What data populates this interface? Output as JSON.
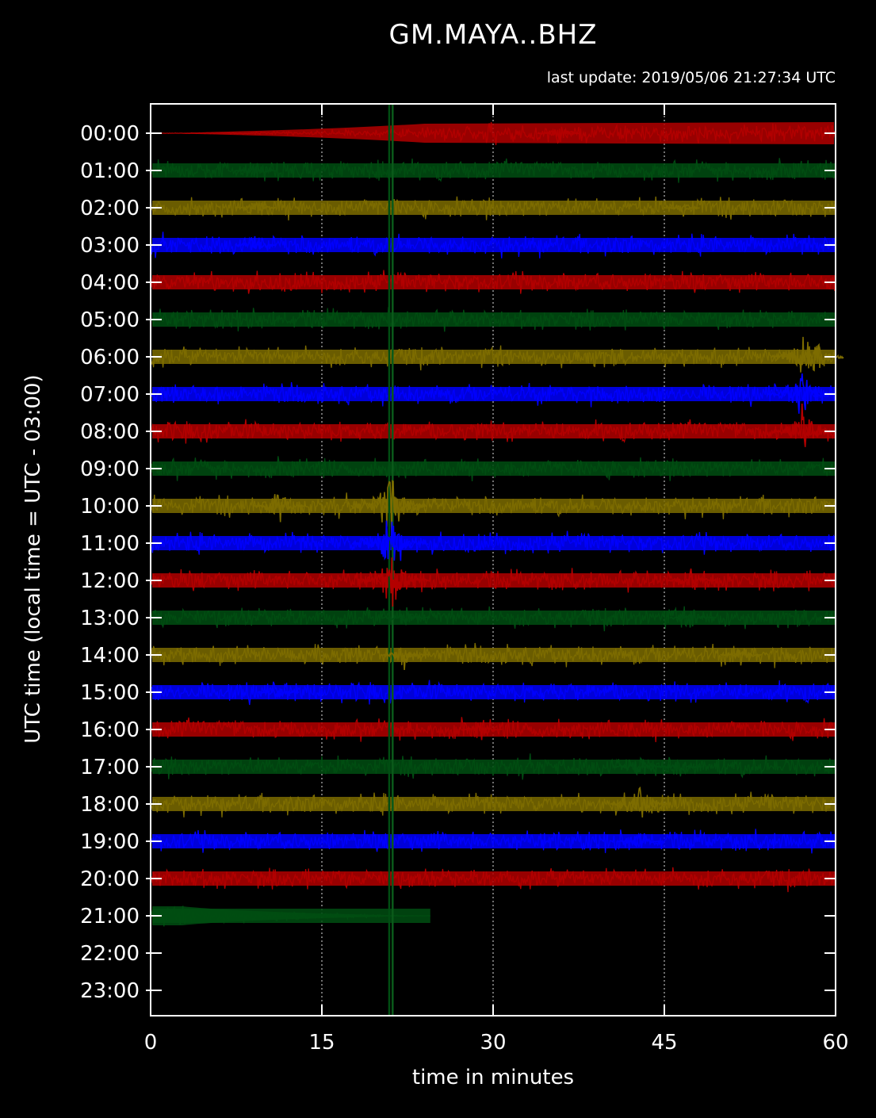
{
  "chart_data": {
    "type": "line",
    "title": "GM.MAYA..BHZ",
    "subtitle": "last update: 2019/05/06 21:27:34 UTC",
    "xlabel": "time in minutes",
    "ylabel": "UTC time (local time = UTC - 03:00)",
    "xlim": [
      0,
      60
    ],
    "x_ticks": [
      "0",
      "15",
      "30",
      "45",
      "60"
    ],
    "y_ticks": [
      "00:00",
      "01:00",
      "02:00",
      "03:00",
      "04:00",
      "05:00",
      "06:00",
      "07:00",
      "08:00",
      "09:00",
      "10:00",
      "11:00",
      "12:00",
      "13:00",
      "14:00",
      "15:00",
      "16:00",
      "17:00",
      "18:00",
      "19:00",
      "20:00",
      "21:00",
      "22:00",
      "23:00"
    ],
    "grid": "vertical dotted at 15, 30, 45 minutes",
    "trace_colors": [
      "#b30000",
      "#004d12",
      "#7d6c00",
      "#0000ff"
    ],
    "traces_present_hours": 22,
    "last_trace_end_minute": 24.5,
    "events": [
      {
        "hour": 0,
        "minute": 35.8,
        "amp": 0.9
      },
      {
        "hour": 1,
        "minute": 9.2,
        "amp": 0.9
      },
      {
        "hour": 2,
        "minute": 9.2,
        "amp": 0.8
      },
      {
        "hour": 2,
        "minute": 46.5,
        "amp": 0.5
      },
      {
        "hour": 3,
        "minute": 9.2,
        "amp": 0.8
      },
      {
        "hour": 6,
        "minute": 57.5,
        "amp": 2.8
      },
      {
        "hour": 7,
        "minute": 57.0,
        "amp": 2.5
      },
      {
        "hour": 8,
        "minute": 57.2,
        "amp": 2.0
      },
      {
        "hour": 10,
        "minute": 11.3,
        "amp": 1.5
      },
      {
        "hour": 10,
        "minute": 20.9,
        "amp": 3.0
      },
      {
        "hour": 11,
        "minute": 21.0,
        "amp": 3.0
      },
      {
        "hour": 12,
        "minute": 21.2,
        "amp": 2.6
      },
      {
        "hour": 12,
        "minute": 47.4,
        "amp": 1.2
      },
      {
        "hour": 13,
        "minute": 22.3,
        "amp": 1.2
      },
      {
        "hour": 13,
        "minute": 47.4,
        "amp": 1.0
      },
      {
        "hour": 14,
        "minute": 22.3,
        "amp": 1.3
      },
      {
        "hour": 14,
        "minute": 51.7,
        "amp": 0.8
      },
      {
        "hour": 15,
        "minute": 11.2,
        "amp": 0.8
      },
      {
        "hour": 16,
        "minute": 29.0,
        "amp": 0.8
      },
      {
        "hour": 17,
        "minute": 42.8,
        "amp": 1.4
      },
      {
        "hour": 17,
        "minute": 46.5,
        "amp": 0.8
      },
      {
        "hour": 18,
        "minute": 42.8,
        "amp": 1.8
      },
      {
        "hour": 19,
        "minute": 42.9,
        "amp": 1.0
      }
    ]
  }
}
